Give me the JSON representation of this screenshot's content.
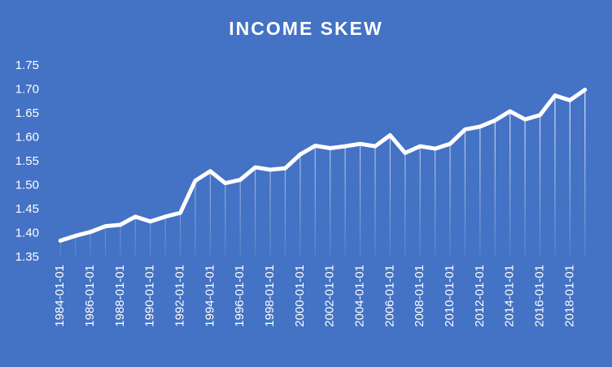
{
  "chart_data": {
    "type": "line",
    "title": "INCOME SKEW",
    "categories": [
      "1984-01-01",
      null,
      "1986-01-01",
      null,
      "1988-01-01",
      null,
      "1990-01-01",
      null,
      "1992-01-01",
      null,
      "1994-01-01",
      null,
      "1996-01-01",
      null,
      "1998-01-01",
      null,
      "2000-01-01",
      null,
      "2002-01-01",
      null,
      "2004-01-01",
      null,
      "2006-01-01",
      null,
      "2008-01-01",
      null,
      "2010-01-01",
      null,
      "2012-01-01",
      null,
      "2014-01-01",
      null,
      "2016-01-01",
      null,
      "2018-01-01",
      null
    ],
    "values": [
      1.385,
      1.395,
      1.403,
      1.415,
      1.418,
      1.435,
      1.425,
      1.435,
      1.443,
      1.51,
      1.53,
      1.505,
      1.512,
      1.538,
      1.533,
      1.536,
      1.565,
      1.583,
      1.578,
      1.582,
      1.587,
      1.582,
      1.605,
      1.568,
      1.582,
      1.577,
      1.587,
      1.617,
      1.623,
      1.636,
      1.655,
      1.638,
      1.647,
      1.688,
      1.678,
      1.7
    ],
    "color": "#ffffff",
    "ylim": [
      1.35,
      1.75
    ],
    "yticks": [
      1.35,
      {
        "value": 1.4,
        "label": "1.40"
      },
      1.45,
      {
        "value": 1.5,
        "label": "1.50"
      },
      1.55,
      {
        "value": 1.6,
        "label": "1.60"
      },
      1.65,
      {
        "value": 1.7,
        "label": "1.70"
      },
      1.75
    ],
    "drop_lines": true
  }
}
